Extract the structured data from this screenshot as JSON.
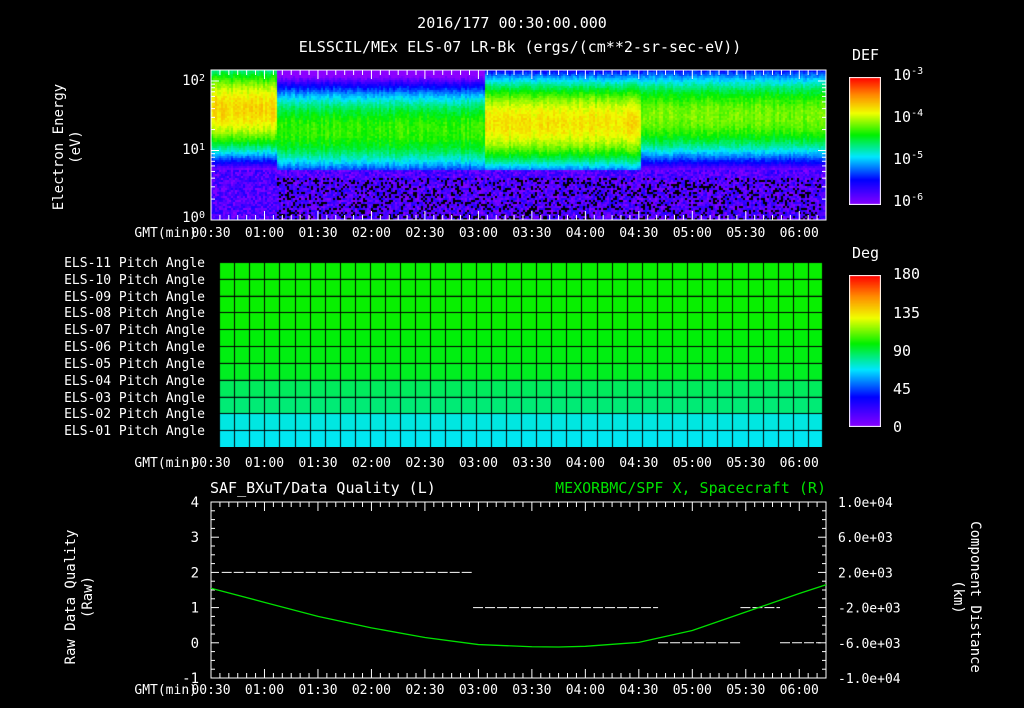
{
  "header": {
    "datetime": "2016/177 00:30:00.000",
    "title": "ELSSCIL/MEx ELS-07 LR-Bk  (ergs/(cm**2-sr-sec-eV))"
  },
  "x_axis": {
    "label": "GMT(min)",
    "ticks": [
      "00:30",
      "01:00",
      "01:30",
      "02:00",
      "02:30",
      "03:00",
      "03:30",
      "04:00",
      "04:30",
      "05:00",
      "05:30",
      "06:00"
    ],
    "range_hours": [
      0.5,
      6.25
    ]
  },
  "colors": {
    "background": "#000000",
    "foreground": "#ffffff",
    "curve": "#00e000"
  },
  "chart_data": [
    {
      "type": "heatmap",
      "title": "ELSSCIL/MEx ELS-07 LR-Bk  (ergs/(cm**2-sr-sec-eV))",
      "ylabel": "Electron Energy (eV)",
      "yscale": "log",
      "ylim": [
        1,
        140
      ],
      "yticks": [
        {
          "base": "10",
          "exp": "2"
        },
        {
          "base": "10",
          "exp": "1"
        },
        {
          "base": "10",
          "exp": "0"
        }
      ],
      "colorbar": {
        "label": "DEF",
        "scale": "log",
        "range": [
          1e-06,
          0.001
        ],
        "ticks": [
          {
            "base": "10",
            "exp": "-3"
          },
          {
            "base": "10",
            "exp": "-4"
          },
          {
            "base": "10",
            "exp": "-5"
          },
          {
            "base": "10",
            "exp": "-6"
          }
        ]
      },
      "segments": [
        {
          "start": 0.5,
          "end": 1.1,
          "peak_log_energy": 1.6,
          "peak_log_def": -3.7
        },
        {
          "start": 1.1,
          "end": 3.05,
          "peak_log_energy": 1.3,
          "peak_log_def": -4.25
        },
        {
          "start": 3.05,
          "end": 4.52,
          "peak_log_energy": 1.4,
          "peak_log_def": -3.75
        },
        {
          "start": 4.52,
          "end": 6.25,
          "peak_log_energy": 1.5,
          "peak_log_def": -4.1
        }
      ]
    },
    {
      "type": "heatmap",
      "title": "Pitch Angle",
      "ylabel": "",
      "rows": [
        "ELS-11 Pitch Angle",
        "ELS-10 Pitch Angle",
        "ELS-09 Pitch Angle",
        "ELS-08 Pitch Angle",
        "ELS-07 Pitch Angle",
        "ELS-06 Pitch Angle",
        "ELS-05 Pitch Angle",
        "ELS-04 Pitch Angle",
        "ELS-03 Pitch Angle",
        "ELS-02 Pitch Angle",
        "ELS-01 Pitch Angle"
      ],
      "values_deg": [
        100,
        100,
        100,
        100,
        98,
        97,
        95,
        88,
        85,
        72,
        70
      ],
      "colorbar": {
        "label": "Deg",
        "range": [
          0,
          180
        ],
        "ticks": [
          "180",
          "135",
          "90",
          "45",
          "0"
        ]
      }
    },
    {
      "type": "line",
      "title_left": "SAF_BXuT/Data Quality (L)",
      "title_right": "MEXORBMC/SPF X, Spacecraft (R)",
      "ylabel": "Raw Data Quality (Raw)",
      "y2label": "Component Distance (km)",
      "ylim": [
        -1,
        4
      ],
      "yticks": [
        "4",
        "3",
        "2",
        "1",
        "0",
        "-1"
      ],
      "y2lim": [
        -10000,
        10000
      ],
      "y2ticks": [
        "1.0e+04",
        "6.0e+03",
        "2.0e+03",
        "-2.0e+03",
        "-6.0e+03",
        "-1.0e+04"
      ],
      "quality_series": [
        {
          "start": 0.6,
          "end": 2.95,
          "value": 2
        },
        {
          "start": 2.95,
          "end": 4.68,
          "value": 1
        },
        {
          "start": 4.68,
          "end": 5.45,
          "value": 0
        },
        {
          "start": 5.45,
          "end": 5.82,
          "value": 1
        },
        {
          "start": 5.82,
          "end": 6.2,
          "value": 0
        }
      ],
      "distance_series": {
        "x_hours": [
          0.5,
          1.0,
          1.5,
          2.0,
          2.5,
          3.0,
          3.5,
          3.75,
          4.0,
          4.5,
          5.0,
          5.5,
          6.0,
          6.25
        ],
        "y_km": [
          200,
          -1400,
          -3000,
          -4300,
          -5400,
          -6200,
          -6450,
          -6480,
          -6400,
          -5950,
          -4600,
          -2500,
          -400,
          600
        ]
      }
    }
  ]
}
